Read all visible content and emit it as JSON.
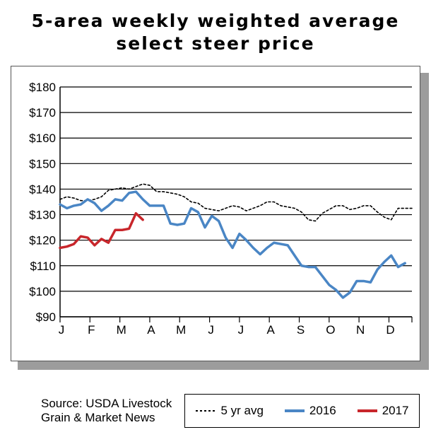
{
  "title_line1": "5-area weekly weighted average",
  "title_line2": "select steer price",
  "source_line1": "Source: USDA Livestock",
  "source_line2": "Grain & Market News",
  "colors": {
    "avg": "#000000",
    "y2016": "#4a86c5",
    "y2017": "#c8262b"
  },
  "chart_data": {
    "type": "line",
    "title": "5-area weekly weighted average select steer price",
    "ylim": [
      90,
      180
    ],
    "yticks": [
      "$180",
      "$170",
      "$160",
      "$150",
      "$140",
      "$130",
      "$120",
      "$110",
      "$100",
      "$90"
    ],
    "ytick_values": [
      180,
      170,
      160,
      150,
      140,
      130,
      120,
      110,
      100,
      90
    ],
    "xlim": [
      0,
      51
    ],
    "xtick_labels": [
      "J",
      "F",
      "M",
      "A",
      "M",
      "J",
      "J",
      "A",
      "S",
      "O",
      "N",
      "D"
    ],
    "xtick_positions": [
      0,
      4.33,
      8.67,
      13,
      17.33,
      21.67,
      26,
      30.33,
      34.67,
      39,
      43.33,
      47.67
    ],
    "grid": "horizontal",
    "legend": "bottom-right",
    "series": [
      {
        "name": "5 yr avg",
        "style": "dotted",
        "x": [
          0,
          1,
          2,
          3,
          4,
          5,
          6,
          7,
          8,
          9,
          10,
          11,
          12,
          13,
          14,
          15,
          16,
          17,
          18,
          19,
          20,
          21,
          22,
          23,
          24,
          25,
          26,
          27,
          28,
          29,
          30,
          31,
          32,
          33,
          34,
          35,
          36,
          37,
          38,
          39,
          40,
          41,
          42,
          43,
          44,
          45,
          46,
          47,
          48,
          49,
          50,
          51
        ],
        "values": [
          136.0,
          137.0,
          136.5,
          135.5,
          135.5,
          136.0,
          137.0,
          139.5,
          140.0,
          140.5,
          140.0,
          141.0,
          142.0,
          141.5,
          139.0,
          139.0,
          138.5,
          138.0,
          137.0,
          135.0,
          134.5,
          132.5,
          132.0,
          131.5,
          132.5,
          133.5,
          133.0,
          131.5,
          132.5,
          133.5,
          135.0,
          135.0,
          133.5,
          133.0,
          132.5,
          131.0,
          128.0,
          127.5,
          130.5,
          132.0,
          133.5,
          133.5,
          132.0,
          132.5,
          133.5,
          133.5,
          131.0,
          129.0,
          128.0,
          132.5,
          132.5,
          132.5
        ]
      },
      {
        "name": "2016",
        "style": "solid",
        "x": [
          0,
          1,
          2,
          3,
          4,
          5,
          6,
          7,
          8,
          9,
          10,
          11,
          12,
          13,
          14,
          15,
          16,
          17,
          18,
          19,
          20,
          21,
          22,
          23,
          24,
          25,
          26,
          27,
          28,
          29,
          30,
          31,
          32,
          33,
          34,
          35,
          36,
          37,
          38,
          39,
          40,
          41,
          42,
          43,
          44,
          45,
          46,
          47,
          48,
          49,
          50
        ],
        "values": [
          134.0,
          132.5,
          133.5,
          134.0,
          136.0,
          134.5,
          131.5,
          133.5,
          136.0,
          135.5,
          138.5,
          139.0,
          136.0,
          133.5,
          133.5,
          133.5,
          126.5,
          126.0,
          126.5,
          132.5,
          131.0,
          125.0,
          129.5,
          127.5,
          121.0,
          117.0,
          122.5,
          120.0,
          117.0,
          114.5,
          117.0,
          119.0,
          118.5,
          118.0,
          114.0,
          110.0,
          109.5,
          109.5,
          106.0,
          102.5,
          100.5,
          97.5,
          99.5,
          104.0,
          104.0,
          103.5,
          108.5,
          111.5,
          114.0,
          109.5,
          111.0
        ]
      },
      {
        "name": "2017",
        "style": "solid",
        "x": [
          0,
          1,
          2,
          3,
          4,
          5,
          6,
          7,
          8,
          9,
          10,
          11,
          12
        ],
        "values": [
          117.0,
          117.5,
          118.5,
          121.5,
          121.0,
          118.0,
          120.5,
          119.0,
          124.0,
          124.0,
          124.5,
          130.5,
          128.0
        ]
      }
    ]
  }
}
